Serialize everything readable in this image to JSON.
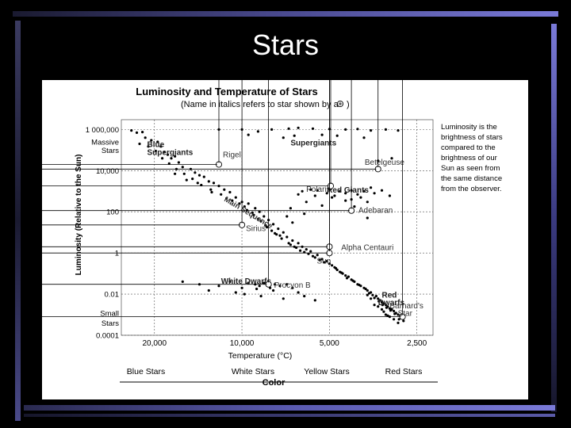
{
  "slide": {
    "title": "Stars"
  },
  "chart_data": {
    "type": "scatter",
    "title": "Luminosity and Temperature of Stars",
    "subtitle": "(Name in italics refers to star shown by a",
    "subtitle_end": ")",
    "xlabel": "Temperature (°C)",
    "ylabel": "Luminosity (Relative to the Sun)",
    "x_scale": "log",
    "y_scale": "log",
    "xlim": [
      26000,
      2200
    ],
    "ylim": [
      0.0001,
      3000000
    ],
    "x_ticks": [
      {
        "value": 20000,
        "label": "20,000"
      },
      {
        "value": 10000,
        "label": "10,000"
      },
      {
        "value": 5000,
        "label": "5,000"
      },
      {
        "value": 2500,
        "label": "2,500"
      }
    ],
    "y_ticks": [
      {
        "value": 1000000,
        "label": "1 000,000"
      },
      {
        "value": 10000,
        "label": "10,000"
      },
      {
        "value": 100,
        "label": "100"
      },
      {
        "value": 1,
        "label": "1"
      },
      {
        "value": 0.01,
        "label": "0.01"
      },
      {
        "value": 0.0001,
        "label": "0.0001"
      }
    ],
    "y_axis_notes": [
      {
        "text": "Massive",
        "at": 250000
      },
      {
        "text": "Stars",
        "at": 100000
      },
      {
        "text": "Small",
        "at": 0.0012
      },
      {
        "text": "Stars",
        "at": 0.0004
      }
    ],
    "grid": true,
    "side_note": [
      "Luminosity is the",
      "brightness of stars",
      "compared to the",
      "brightness of our",
      "Sun as seen from",
      "the same distance",
      "from the observer."
    ],
    "color_bands": [
      "Blue Stars",
      "White Stars",
      "Yellow Stars",
      "Red Stars"
    ],
    "color_axis_label": "Color",
    "regions": [
      {
        "text": "Blue",
        "x": 21200,
        "y": 180000
      },
      {
        "text": "Supergiants",
        "x": 21200,
        "y": 75000
      },
      {
        "text": "Supergiants",
        "x": 6800,
        "y": 220000
      },
      {
        "text": "Red Giants",
        "x": 5100,
        "y": 1100
      },
      {
        "text": "White Dwarfs",
        "x": 11800,
        "y": 0.042
      },
      {
        "text": "Red",
        "x": 3300,
        "y": 0.009
      },
      {
        "text": "Dwarfs",
        "x": 3400,
        "y": 0.0038
      }
    ],
    "main_sequence_label": "Main Sequence",
    "named_stars": [
      {
        "name": "Rigel",
        "x": 12000,
        "y": 20000,
        "lx": 12000,
        "ly": 60000
      },
      {
        "name": "Betelgeuse",
        "x": 3400,
        "y": 12000,
        "lx": 3900,
        "ly": 26000
      },
      {
        "name": "Polaris",
        "x": 4950,
        "y": 1800,
        "lx": 6200,
        "ly": 1300
      },
      {
        "name": "Adebaran",
        "x": 4200,
        "y": 115,
        "lx": 4100,
        "ly": 120
      },
      {
        "name": "Sirius",
        "x": 10000,
        "y": 23,
        "lx": 10000,
        "ly": 16
      },
      {
        "name": "Alpha Centauri",
        "x": 5000,
        "y": 2,
        "lx": 4700,
        "ly": 1.9
      },
      {
        "name": "Sun",
        "x": 5000,
        "y": 1,
        "lx": 5700,
        "ly": 0.42
      },
      {
        "name": "Procyon B",
        "x": 8100,
        "y": 0.03,
        "lx": 8000,
        "ly": 0.028
      },
      {
        "name": "Barnard's",
        "x": 2800,
        "y": 0.0008,
        "lx": 3200,
        "ly": 0.0028
      },
      {
        "name": "Star",
        "x": 2800,
        "y": 0.0008,
        "lx": 3000,
        "ly": 0.0012
      }
    ],
    "points": [
      [
        24000,
        900000
      ],
      [
        23000,
        700000
      ],
      [
        22000,
        750000
      ],
      [
        21500,
        400000
      ],
      [
        20500,
        300000
      ],
      [
        19500,
        250000
      ],
      [
        19000,
        150000
      ],
      [
        18500,
        80000
      ],
      [
        18000,
        60000
      ],
      [
        17500,
        40000
      ],
      [
        17000,
        50000
      ],
      [
        16500,
        25000
      ],
      [
        16000,
        15000
      ],
      [
        15000,
        12000
      ],
      [
        14500,
        8000
      ],
      [
        14000,
        6000
      ],
      [
        13500,
        5000
      ],
      [
        13000,
        3000
      ],
      [
        12500,
        2500
      ],
      [
        12000,
        1800
      ],
      [
        11500,
        1200
      ],
      [
        11000,
        900
      ],
      [
        10500,
        500
      ],
      [
        10000,
        300
      ],
      [
        9500,
        250
      ],
      [
        9000,
        150
      ],
      [
        8700,
        100
      ],
      [
        8400,
        60
      ],
      [
        8100,
        40
      ],
      [
        7800,
        25
      ],
      [
        7500,
        15
      ],
      [
        7200,
        10
      ],
      [
        7000,
        6
      ],
      [
        6700,
        4
      ],
      [
        6400,
        3
      ],
      [
        6200,
        2
      ],
      [
        6000,
        1.5
      ],
      [
        5800,
        1.2
      ],
      [
        5500,
        0.8
      ],
      [
        5300,
        0.5
      ],
      [
        5100,
        0.4
      ],
      [
        4900,
        0.25
      ],
      [
        4700,
        0.15
      ],
      [
        4500,
        0.1
      ],
      [
        4300,
        0.07
      ],
      [
        4100,
        0.04
      ],
      [
        3900,
        0.025
      ],
      [
        3700,
        0.015
      ],
      [
        3550,
        0.009
      ],
      [
        3400,
        0.006
      ],
      [
        3300,
        0.004
      ],
      [
        3200,
        0.003
      ],
      [
        3100,
        0.002
      ],
      [
        3000,
        0.0015
      ],
      [
        2900,
        0.001
      ],
      [
        2800,
        0.0007
      ],
      [
        22500,
        200000
      ],
      [
        21000,
        150000
      ],
      [
        19800,
        90000
      ],
      [
        18800,
        40000
      ],
      [
        17800,
        22000
      ],
      [
        16800,
        12000
      ],
      [
        15800,
        7000
      ],
      [
        14800,
        4000
      ],
      [
        13800,
        2000
      ],
      [
        12800,
        1200
      ],
      [
        11800,
        700
      ],
      [
        10800,
        350
      ],
      [
        9800,
        180
      ],
      [
        9200,
        90
      ],
      [
        8800,
        45
      ],
      [
        8300,
        22
      ],
      [
        7900,
        12
      ],
      [
        7600,
        8
      ],
      [
        7300,
        5
      ],
      [
        6900,
        3
      ],
      [
        6600,
        2
      ],
      [
        6300,
        1.3
      ],
      [
        5900,
        0.9
      ],
      [
        5600,
        0.6
      ],
      [
        5200,
        0.35
      ],
      [
        4800,
        0.2
      ],
      [
        4600,
        0.12
      ],
      [
        4400,
        0.08
      ],
      [
        4200,
        0.05
      ],
      [
        4000,
        0.03
      ],
      [
        3800,
        0.02
      ],
      [
        3600,
        0.012
      ],
      [
        3450,
        0.008
      ],
      [
        3350,
        0.005
      ],
      [
        3250,
        0.0035
      ],
      [
        3150,
        0.0025
      ],
      [
        3050,
        0.0018
      ],
      [
        2950,
        0.0012
      ],
      [
        2850,
        0.0009
      ],
      [
        17000,
        7000
      ],
      [
        15500,
        3500
      ],
      [
        14200,
        2500
      ],
      [
        12700,
        900
      ],
      [
        11300,
        450
      ],
      [
        10200,
        250
      ],
      [
        9600,
        120
      ],
      [
        9100,
        70
      ],
      [
        8600,
        35
      ],
      [
        8200,
        18
      ],
      [
        7700,
        9
      ],
      [
        7400,
        7
      ],
      [
        6800,
        2.5
      ],
      [
        6500,
        1.8
      ],
      [
        6100,
        1.1
      ],
      [
        5700,
        0.7
      ],
      [
        5400,
        0.45
      ],
      [
        5000,
        0.3
      ],
      [
        4750,
        0.18
      ],
      [
        4550,
        0.11
      ],
      [
        4350,
        0.06
      ],
      [
        4150,
        0.045
      ],
      [
        3950,
        0.028
      ],
      [
        3750,
        0.018
      ],
      [
        3650,
        0.011
      ],
      [
        3500,
        0.0065
      ],
      [
        3380,
        0.0045
      ],
      [
        3280,
        0.003
      ],
      [
        3180,
        0.0022
      ],
      [
        3080,
        0.0016
      ],
      [
        2980,
        0.0011
      ],
      [
        2880,
        0.0006
      ],
      [
        2780,
        0.0005
      ],
      [
        3600,
        0.006
      ],
      [
        3500,
        0.003
      ],
      [
        3300,
        0.0018
      ],
      [
        3200,
        0.001
      ],
      [
        3100,
        0.0008
      ],
      [
        3000,
        0.0006
      ],
      [
        2900,
        0.0004
      ],
      [
        3700,
        0.009
      ],
      [
        3400,
        0.0025
      ],
      [
        3250,
        0.0014
      ],
      [
        3150,
        0.0009
      ],
      [
        6900,
        1100000
      ],
      [
        6400,
        1200000
      ],
      [
        5700,
        1100000
      ],
      [
        5000,
        1050000
      ],
      [
        4400,
        1000000
      ],
      [
        4000,
        1050000
      ],
      [
        3600,
        900000
      ],
      [
        3200,
        1000000
      ],
      [
        2900,
        900000
      ],
      [
        7900,
        1000000
      ],
      [
        8800,
        800000
      ],
      [
        10000,
        1000000
      ],
      [
        12000,
        1000000
      ],
      [
        6600,
        500000
      ],
      [
        5300,
        550000
      ],
      [
        4700,
        500000
      ],
      [
        3800,
        400000
      ],
      [
        9500,
        550000
      ],
      [
        7200,
        400000
      ],
      [
        3400,
        30000
      ],
      [
        3050,
        40000
      ],
      [
        6200,
        1000
      ],
      [
        5800,
        1200
      ],
      [
        5500,
        1100
      ],
      [
        5000,
        1300
      ],
      [
        4600,
        1000
      ],
      [
        4400,
        800
      ],
      [
        4200,
        1100
      ],
      [
        4000,
        700
      ],
      [
        3900,
        500
      ],
      [
        3700,
        300
      ],
      [
        3500,
        800
      ],
      [
        3300,
        1100
      ],
      [
        3100,
        600
      ],
      [
        4800,
        600
      ],
      [
        4400,
        350
      ],
      [
        4100,
        180
      ],
      [
        3700,
        50
      ],
      [
        5300,
        200
      ],
      [
        6800,
        150
      ],
      [
        7000,
        60
      ],
      [
        6400,
        700
      ],
      [
        5600,
        600
      ],
      [
        4900,
        500
      ],
      [
        6100,
        80
      ],
      [
        6700,
        30
      ],
      [
        3800,
        1000
      ],
      [
        3600,
        1500
      ],
      [
        5100,
        800
      ],
      [
        6000,
        300
      ],
      [
        4200,
        400
      ],
      [
        16000,
        0.04
      ],
      [
        14000,
        0.03
      ],
      [
        12000,
        0.025
      ],
      [
        11000,
        0.04
      ],
      [
        10000,
        0.02
      ],
      [
        9500,
        0.035
      ],
      [
        9000,
        0.03
      ],
      [
        8700,
        0.025
      ],
      [
        8400,
        0.035
      ],
      [
        8000,
        0.02
      ],
      [
        7700,
        0.03
      ],
      [
        7400,
        0.025
      ],
      [
        7000,
        0.03
      ],
      [
        6700,
        0.02
      ],
      [
        6400,
        0.012
      ],
      [
        6100,
        0.008
      ],
      [
        5600,
        0.005
      ],
      [
        13000,
        0.015
      ],
      [
        10500,
        0.012
      ],
      [
        9800,
        0.01
      ],
      [
        8600,
        0.008
      ],
      [
        7200,
        0.006
      ],
      [
        7800,
        0.015
      ],
      [
        8900,
        0.018
      ]
    ]
  }
}
